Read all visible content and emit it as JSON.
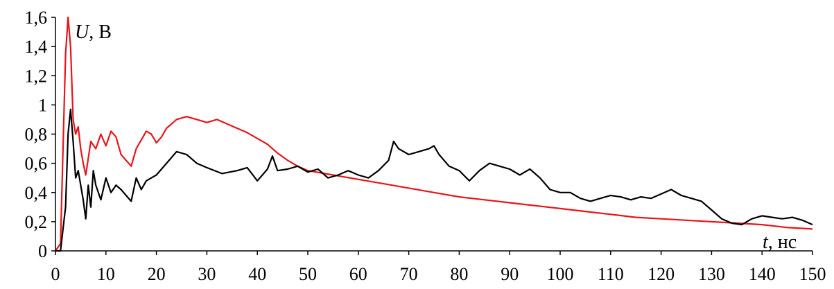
{
  "chart_data": {
    "type": "line",
    "title": "",
    "xlabel_symbol": "t",
    "xlabel_unit": ", нс",
    "ylabel_symbol": "U",
    "ylabel_unit": ", В",
    "xlim": [
      0,
      150
    ],
    "ylim": [
      0,
      1.6
    ],
    "x_ticks": [
      "0",
      "10",
      "20",
      "30",
      "40",
      "50",
      "60",
      "70",
      "80",
      "90",
      "100",
      "110",
      "120",
      "130",
      "140",
      "150"
    ],
    "y_ticks": [
      "0",
      "0,2",
      "0,4",
      "0,6",
      "0,8",
      "1",
      "1,2",
      "1,4",
      "1,6"
    ],
    "grid": false,
    "legend": "none",
    "series": [
      {
        "color": "#e8141a",
        "x": [
          0,
          1,
          1.5,
          2,
          2.5,
          3,
          3.5,
          4,
          4.5,
          5,
          5.5,
          6,
          7,
          8,
          9,
          10,
          11,
          12,
          13,
          14,
          15,
          16,
          17,
          18,
          19,
          20,
          21,
          22,
          24,
          26,
          28,
          30,
          32,
          34,
          36,
          38,
          40,
          42,
          44,
          46,
          48,
          50,
          55,
          60,
          65,
          70,
          75,
          80,
          85,
          90,
          95,
          100,
          105,
          110,
          115,
          120,
          125,
          130,
          135,
          140,
          145,
          150
        ],
        "y": [
          0,
          0.05,
          0.7,
          1.35,
          1.6,
          1.4,
          0.9,
          0.8,
          0.85,
          0.7,
          0.6,
          0.52,
          0.75,
          0.7,
          0.8,
          0.72,
          0.82,
          0.78,
          0.66,
          0.62,
          0.58,
          0.7,
          0.76,
          0.82,
          0.8,
          0.74,
          0.78,
          0.84,
          0.9,
          0.92,
          0.9,
          0.88,
          0.9,
          0.87,
          0.84,
          0.81,
          0.77,
          0.73,
          0.67,
          0.62,
          0.58,
          0.55,
          0.52,
          0.49,
          0.46,
          0.43,
          0.4,
          0.37,
          0.35,
          0.33,
          0.31,
          0.29,
          0.27,
          0.25,
          0.23,
          0.22,
          0.21,
          0.2,
          0.19,
          0.18,
          0.16,
          0.15
        ]
      },
      {
        "color": "#000000",
        "x": [
          0,
          1,
          1.5,
          2,
          2.5,
          3,
          3.5,
          4,
          4.5,
          5,
          5.5,
          6,
          6.5,
          7,
          7.5,
          8,
          9,
          10,
          11,
          12,
          13,
          14,
          15,
          16,
          17,
          18,
          19,
          20,
          22,
          24,
          26,
          28,
          30,
          33,
          36,
          38,
          40,
          42,
          43,
          44,
          46,
          48,
          50,
          52,
          54,
          56,
          58,
          60,
          62,
          64,
          66,
          67,
          68,
          70,
          72,
          74,
          75,
          76,
          78,
          80,
          82,
          84,
          86,
          88,
          90,
          92,
          94,
          96,
          98,
          100,
          102,
          104,
          106,
          108,
          110,
          112,
          114,
          116,
          118,
          120,
          122,
          124,
          126,
          128,
          130,
          132,
          134,
          136,
          138,
          140,
          142,
          144,
          146,
          148,
          150
        ],
        "y": [
          0,
          0,
          0.15,
          0.3,
          0.8,
          0.97,
          0.75,
          0.5,
          0.55,
          0.45,
          0.35,
          0.22,
          0.45,
          0.3,
          0.55,
          0.45,
          0.35,
          0.5,
          0.4,
          0.45,
          0.42,
          0.38,
          0.34,
          0.5,
          0.42,
          0.48,
          0.5,
          0.52,
          0.6,
          0.68,
          0.66,
          0.6,
          0.57,
          0.53,
          0.55,
          0.57,
          0.48,
          0.56,
          0.65,
          0.55,
          0.56,
          0.58,
          0.54,
          0.56,
          0.5,
          0.52,
          0.55,
          0.52,
          0.5,
          0.55,
          0.62,
          0.75,
          0.7,
          0.66,
          0.68,
          0.7,
          0.72,
          0.66,
          0.58,
          0.55,
          0.48,
          0.55,
          0.6,
          0.58,
          0.56,
          0.52,
          0.56,
          0.5,
          0.42,
          0.4,
          0.4,
          0.36,
          0.34,
          0.36,
          0.38,
          0.37,
          0.35,
          0.37,
          0.36,
          0.39,
          0.42,
          0.38,
          0.36,
          0.34,
          0.28,
          0.22,
          0.19,
          0.18,
          0.22,
          0.24,
          0.23,
          0.22,
          0.23,
          0.21,
          0.18
        ]
      }
    ]
  }
}
